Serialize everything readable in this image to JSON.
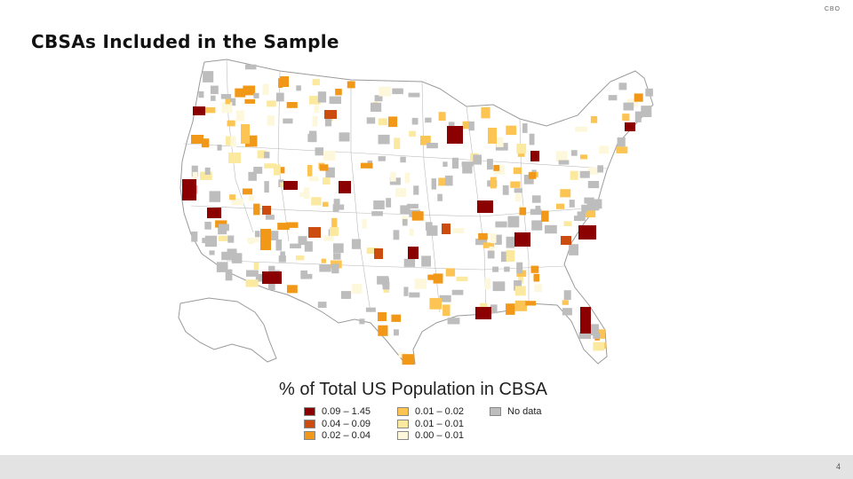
{
  "header": {
    "org": "CBO",
    "title": "CBSAs Included in the Sample"
  },
  "map": {
    "region": "United States (contiguous US and Alaska)",
    "colors": {
      "land": "#ffffff",
      "border": "#9a9a9a",
      "nodata": "#bdbdbd",
      "class_1": "#8b0000",
      "class_2": "#cc4b0f",
      "class_3": "#f29818",
      "class_4": "#fcc452",
      "class_5": "#fbe9a0",
      "class_6": "#fdf8dc"
    }
  },
  "legend": {
    "title": "% of Total US Population in CBSA",
    "items": [
      {
        "label": "0.09 – 1.45",
        "color": "#8b0000"
      },
      {
        "label": "0.04 – 0.09",
        "color": "#cc4b0f"
      },
      {
        "label": "0.02 – 0.04",
        "color": "#f29818"
      },
      {
        "label": "0.01 – 0.02",
        "color": "#fcc452"
      },
      {
        "label": "0.01 – 0.01",
        "color": "#fbe9a0"
      },
      {
        "label": "0.00 – 0.01",
        "color": "#fdf8dc"
      },
      {
        "label": "No data",
        "color": "#bdbdbd"
      }
    ]
  },
  "footer": {
    "page_number": "4"
  }
}
